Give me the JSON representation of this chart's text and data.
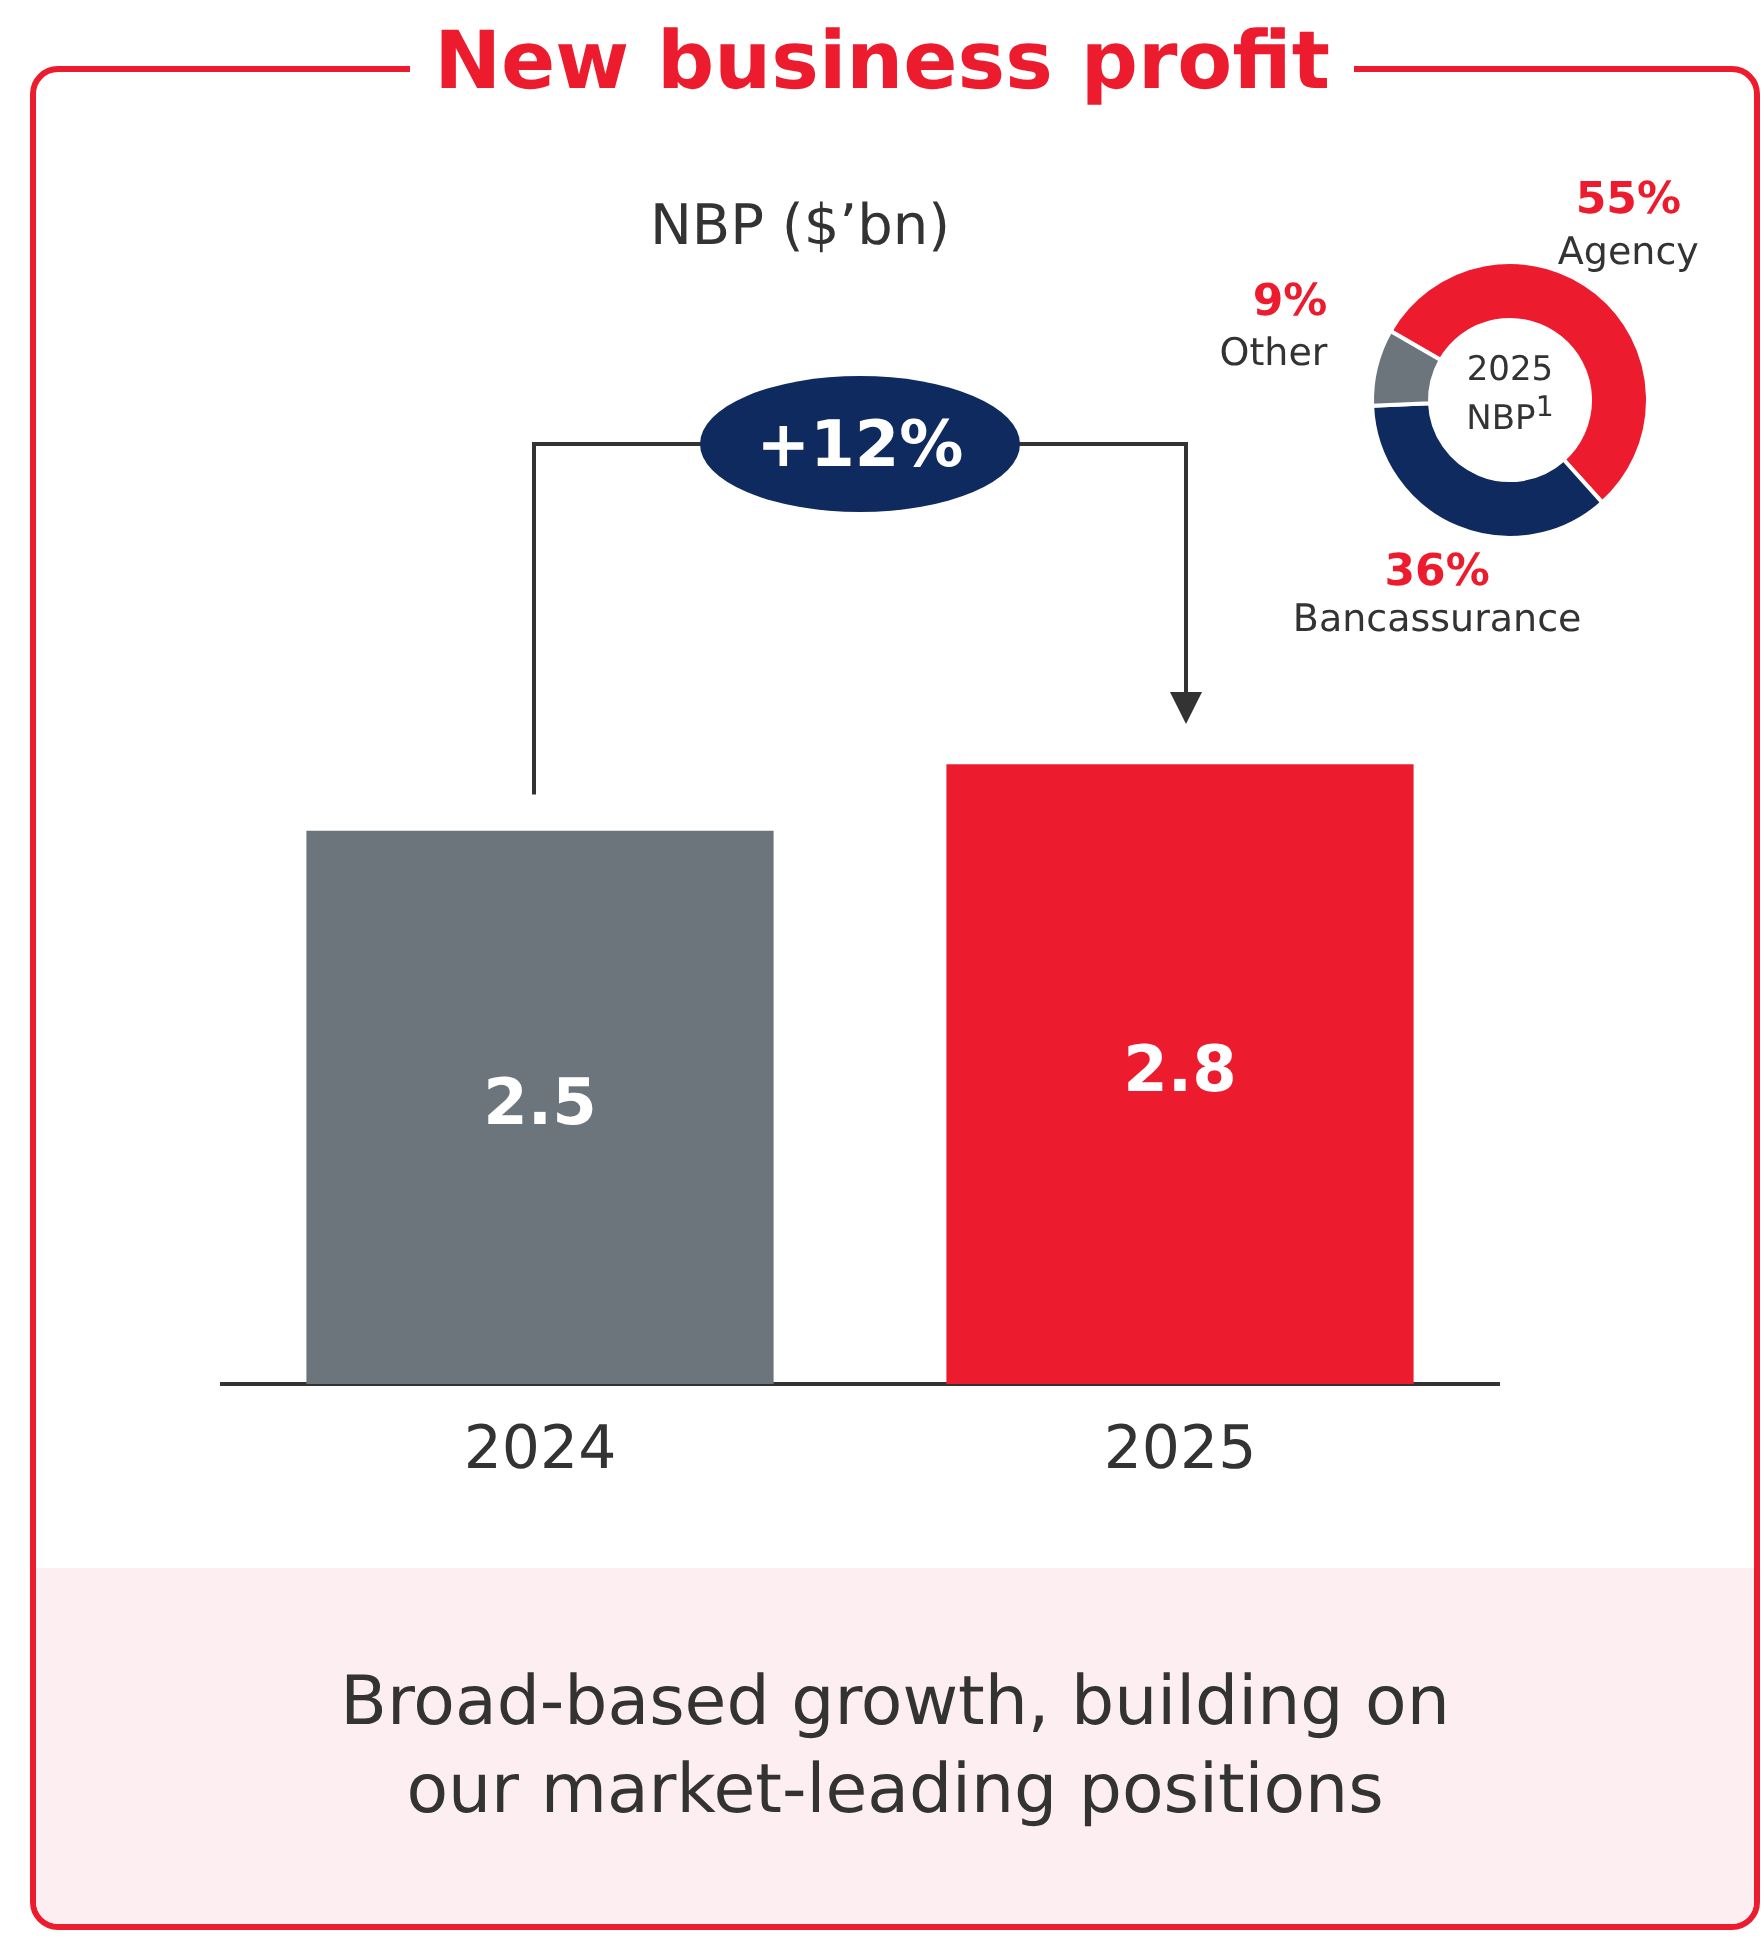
{
  "chart_data": [
    {
      "type": "bar",
      "title": "New business profit",
      "subtitle": "NBP ($’bn)",
      "categories": [
        "2024",
        "2025"
      ],
      "values": [
        2.5,
        2.8
      ],
      "colors": [
        "#6b757b",
        "#ec1c2e"
      ],
      "data_labels": true,
      "grid": false,
      "legend": false,
      "annotations": [
        "+12%",
        "Broad-based growth, building on our market-leading positions"
      ]
    },
    {
      "type": "donut",
      "title": "2025 NBP$^{1}$",
      "categories": [
        "Agency",
        "Bancassurance",
        "Other"
      ],
      "values": [
        55,
        36,
        9
      ],
      "colors": [
        "#ec1c2e",
        "#0f2a5e",
        "#6b757b"
      ],
      "value_labels": [
        "55%",
        "36%",
        "9%"
      ],
      "legend": false
    }
  ]
}
